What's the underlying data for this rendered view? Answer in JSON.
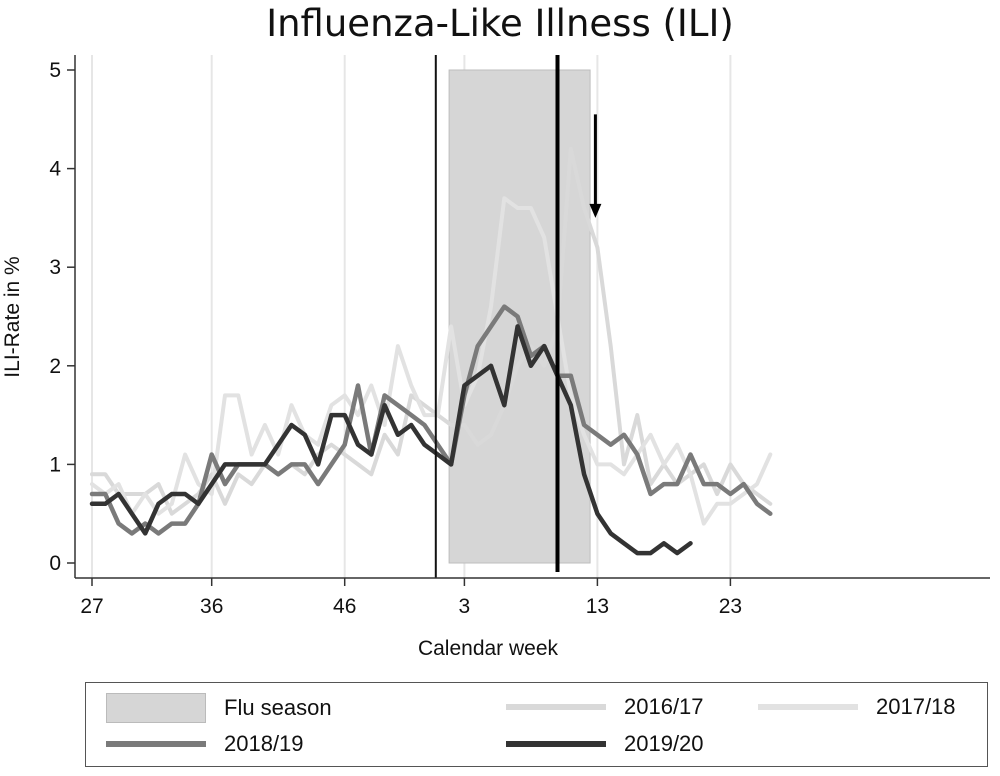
{
  "chart_data": {
    "type": "line",
    "title": "Influenza-Like Illness (ILI)",
    "xlabel": "Calendar week",
    "ylabel": "ILI-Rate in %",
    "ylim": [
      0,
      5
    ],
    "yticks": [
      "0",
      "1",
      "2",
      "3",
      "4",
      "5"
    ],
    "xticks": [
      "27",
      "36",
      "46",
      "3",
      "13",
      "23"
    ],
    "week_sequence": [
      "27",
      "28",
      "29",
      "30",
      "31",
      "32",
      "33",
      "34",
      "35",
      "36",
      "37",
      "38",
      "39",
      "40",
      "41",
      "42",
      "43",
      "44",
      "45",
      "46",
      "47",
      "48",
      "49",
      "50",
      "51",
      "52",
      "1",
      "2",
      "3",
      "4",
      "5",
      "6",
      "7",
      "8",
      "9",
      "10",
      "11",
      "12",
      "13",
      "14",
      "15",
      "16",
      "17",
      "18",
      "19",
      "20",
      "21",
      "22",
      "23",
      "24",
      "25",
      "26"
    ],
    "grid": "vertical",
    "legend_position": "bottom",
    "flu_season": {
      "label": "Flu season",
      "start_week": "2",
      "end_week": "12",
      "height": 5,
      "color": "#d6d6d6"
    },
    "reference_lines": [
      {
        "week": "1",
        "style": "thin"
      },
      {
        "week": "10",
        "style": "thick"
      }
    ],
    "arrow": {
      "week": "13",
      "from": 4.55,
      "to": 3.5
    },
    "series": [
      {
        "name": "2016/17",
        "color": "#d9d9d9",
        "width": 4,
        "values": [
          0.9,
          0.9,
          0.7,
          0.7,
          0.7,
          0.8,
          0.5,
          0.6,
          0.7,
          0.9,
          0.6,
          0.9,
          0.8,
          1.0,
          0.9,
          1.0,
          0.9,
          1.1,
          1.2,
          1.1,
          1.0,
          0.9,
          1.3,
          1.1,
          1.7,
          1.6,
          1.5,
          1.4,
          1.4,
          1.2,
          1.3,
          1.6,
          2.0,
          2.2,
          2.0,
          2.4,
          4.2,
          3.6,
          3.2,
          2.2,
          1.0,
          1.5,
          0.8,
          1.0,
          0.8,
          0.9,
          1.0,
          0.7,
          1.0,
          0.8,
          0.7,
          0.6
        ]
      },
      {
        "name": "2017/18",
        "color": "#e2e2e2",
        "width": 4,
        "values": [
          0.8,
          0.7,
          0.8,
          0.5,
          0.7,
          0.5,
          0.6,
          1.1,
          0.8,
          0.7,
          1.7,
          1.7,
          1.1,
          1.4,
          1.1,
          1.6,
          1.3,
          1.2,
          1.6,
          1.7,
          1.5,
          1.8,
          1.4,
          2.2,
          1.8,
          1.5,
          1.5,
          2.4,
          1.6,
          1.9,
          2.6,
          3.7,
          3.6,
          3.6,
          3.3,
          2.5,
          1.7,
          1.3,
          1.0,
          1.0,
          0.9,
          1.1,
          1.3,
          1.0,
          1.2,
          0.9,
          0.4,
          0.6,
          0.6,
          0.7,
          0.8,
          1.1
        ]
      },
      {
        "name": "2018/19",
        "color": "#7a7a7a",
        "width": 4.5,
        "values": [
          0.7,
          0.7,
          0.4,
          0.3,
          0.4,
          0.3,
          0.4,
          0.4,
          0.6,
          1.1,
          0.8,
          1.0,
          1.0,
          1.0,
          0.9,
          1.0,
          1.0,
          0.8,
          1.0,
          1.2,
          1.8,
          1.1,
          1.7,
          1.6,
          1.5,
          1.4,
          1.2,
          1.0,
          1.7,
          2.2,
          2.4,
          2.6,
          2.5,
          2.1,
          2.2,
          1.9,
          1.9,
          1.4,
          1.3,
          1.2,
          1.3,
          1.1,
          0.7,
          0.8,
          0.8,
          1.1,
          0.8,
          0.8,
          0.7,
          0.8,
          0.6,
          0.5
        ]
      },
      {
        "name": "2019/20",
        "color": "#333333",
        "width": 4.5,
        "values": [
          0.6,
          0.6,
          0.7,
          0.5,
          0.3,
          0.6,
          0.7,
          0.7,
          0.6,
          0.8,
          1.0,
          1.0,
          1.0,
          1.0,
          1.2,
          1.4,
          1.3,
          1.0,
          1.5,
          1.5,
          1.2,
          1.1,
          1.6,
          1.3,
          1.4,
          1.2,
          1.1,
          1.0,
          1.8,
          1.9,
          2.0,
          1.6,
          2.4,
          2.0,
          2.2,
          1.9,
          1.6,
          0.9,
          0.5,
          0.3,
          0.2,
          0.1,
          0.1,
          0.2,
          0.1,
          0.2,
          null,
          null,
          null,
          null,
          null,
          null
        ]
      }
    ]
  },
  "legend": {
    "flu_season": "Flu season",
    "s2016": "2016/17",
    "s2017": "2017/18",
    "s2018": "2018/19",
    "s2019": "2019/20"
  }
}
